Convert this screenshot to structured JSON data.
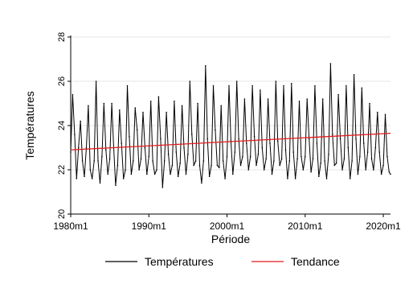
{
  "chart_data": {
    "type": "line",
    "title": "",
    "xlabel": "Période",
    "ylabel": "Températures",
    "x_ticks": [
      "1980m1",
      "1990m1",
      "2000m1",
      "2010m1",
      "2020m1"
    ],
    "x_tick_values": [
      1980.0,
      1990.0,
      2000.0,
      2010.0,
      2020.0
    ],
    "y_ticks": [
      20,
      22,
      24,
      26,
      28
    ],
    "xlim": [
      1980.0,
      2020.92
    ],
    "ylim": [
      20,
      28
    ],
    "grid": "horizontal",
    "legend_position": "bottom",
    "series": [
      {
        "name": "Températures",
        "color": "#000000",
        "kind": "monthly-sampled",
        "x": [
          1980.0,
          1980.25,
          1980.5,
          1980.75,
          1981.0,
          1981.25,
          1981.5,
          1981.75,
          1982.0,
          1982.25,
          1982.5,
          1982.75,
          1983.0,
          1983.25,
          1983.5,
          1983.75,
          1984.0,
          1984.25,
          1984.5,
          1984.75,
          1985.0,
          1985.25,
          1985.5,
          1985.75,
          1986.0,
          1986.25,
          1986.5,
          1986.75,
          1987.0,
          1987.25,
          1987.5,
          1987.75,
          1988.0,
          1988.25,
          1988.5,
          1988.75,
          1989.0,
          1989.25,
          1989.5,
          1989.75,
          1990.0,
          1990.25,
          1990.5,
          1990.75,
          1991.0,
          1991.25,
          1991.5,
          1991.75,
          1992.0,
          1992.25,
          1992.5,
          1992.75,
          1993.0,
          1993.25,
          1993.5,
          1993.75,
          1994.0,
          1994.25,
          1994.5,
          1994.75,
          1995.0,
          1995.25,
          1995.5,
          1995.75,
          1996.0,
          1996.25,
          1996.5,
          1996.75,
          1997.0,
          1997.25,
          1997.5,
          1997.75,
          1998.0,
          1998.25,
          1998.5,
          1998.75,
          1999.0,
          1999.25,
          1999.5,
          1999.75,
          2000.0,
          2000.25,
          2000.5,
          2000.75,
          2001.0,
          2001.25,
          2001.5,
          2001.75,
          2002.0,
          2002.25,
          2002.5,
          2002.75,
          2003.0,
          2003.25,
          2003.5,
          2003.75,
          2004.0,
          2004.25,
          2004.5,
          2004.75,
          2005.0,
          2005.25,
          2005.5,
          2005.75,
          2006.0,
          2006.25,
          2006.5,
          2006.75,
          2007.0,
          2007.25,
          2007.5,
          2007.75,
          2008.0,
          2008.25,
          2008.5,
          2008.75,
          2009.0,
          2009.25,
          2009.5,
          2009.75,
          2010.0,
          2010.25,
          2010.5,
          2010.75,
          2011.0,
          2011.25,
          2011.5,
          2011.75,
          2012.0,
          2012.25,
          2012.5,
          2012.75,
          2013.0,
          2013.25,
          2013.5,
          2013.75,
          2014.0,
          2014.25,
          2014.5,
          2014.75,
          2015.0,
          2015.25,
          2015.5,
          2015.75,
          2016.0,
          2016.25,
          2016.5,
          2016.75,
          2017.0,
          2017.25,
          2017.5,
          2017.75,
          2018.0,
          2018.25,
          2018.5,
          2018.75,
          2019.0,
          2019.25,
          2019.5,
          2019.75,
          2020.0,
          2020.25,
          2020.5,
          2020.75,
          2020.92
        ],
        "y": [
          22.8,
          25.4,
          23.6,
          21.6,
          23.0,
          24.2,
          22.4,
          21.7,
          23.0,
          24.9,
          22.0,
          21.6,
          22.4,
          26.0,
          22.4,
          21.4,
          22.6,
          25.0,
          22.9,
          21.8,
          22.5,
          25.0,
          23.0,
          21.3,
          22.2,
          24.7,
          23.2,
          21.6,
          22.0,
          25.8,
          23.5,
          21.8,
          22.4,
          24.8,
          23.8,
          22.0,
          22.5,
          24.6,
          23.0,
          21.8,
          22.6,
          25.1,
          22.4,
          21.8,
          22.0,
          25.3,
          23.4,
          21.2,
          22.4,
          24.6,
          22.7,
          21.8,
          22.2,
          25.1,
          22.8,
          21.7,
          22.3,
          24.9,
          23.0,
          21.8,
          22.7,
          26.0,
          23.6,
          22.2,
          22.4,
          25.0,
          22.2,
          21.4,
          22.4,
          26.7,
          23.4,
          21.7,
          22.2,
          25.8,
          23.8,
          22.2,
          22.1,
          24.9,
          22.4,
          21.6,
          22.6,
          25.8,
          23.3,
          21.8,
          22.8,
          26.0,
          23.4,
          22.2,
          22.6,
          25.2,
          23.2,
          22.0,
          22.6,
          25.8,
          23.5,
          22.2,
          22.7,
          25.6,
          23.0,
          22.0,
          22.5,
          25.2,
          23.2,
          21.8,
          22.4,
          26.0,
          23.3,
          22.2,
          22.5,
          25.8,
          22.9,
          21.6,
          22.4,
          25.9,
          22.8,
          21.6,
          22.5,
          25.1,
          22.6,
          22.0,
          22.6,
          25.2,
          23.4,
          21.9,
          22.5,
          25.8,
          23.2,
          21.7,
          22.3,
          25.2,
          22.4,
          21.6,
          22.7,
          26.8,
          23.6,
          22.2,
          22.3,
          25.4,
          23.4,
          22.0,
          22.5,
          25.8,
          23.0,
          21.6,
          22.4,
          26.3,
          23.4,
          21.8,
          22.6,
          25.7,
          23.2,
          22.0,
          22.8,
          25.0,
          22.5,
          22.0,
          23.0,
          24.6,
          22.8,
          21.8,
          22.2,
          24.5,
          22.6,
          21.9,
          21.8
        ],
        "note": "approximate sampled readings"
      },
      {
        "name": "Tendance",
        "color": "#e31a1c",
        "kind": "linear-trend",
        "x": [
          1980.0,
          2020.92
        ],
        "y": [
          22.9,
          23.65
        ]
      }
    ]
  }
}
